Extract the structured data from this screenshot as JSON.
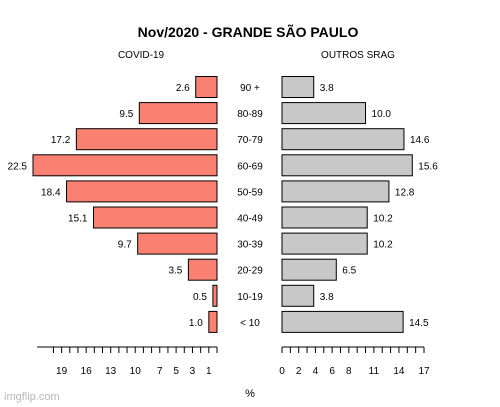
{
  "chart_data": {
    "type": "bar",
    "title": "Nov/2020 - GRANDE SÃO PAULO",
    "xlabel": "%",
    "categories": [
      "90 +",
      "80-89",
      "70-79",
      "60-69",
      "50-59",
      "40-49",
      "30-39",
      "20-29",
      "10-19",
      "< 10"
    ],
    "series": [
      {
        "name": "COVID-19",
        "values": [
          2.6,
          9.5,
          17.2,
          22.5,
          18.4,
          15.1,
          9.7,
          3.5,
          0.5,
          1.0
        ],
        "color": "#fa8072",
        "direction": "left",
        "ticks": [
          19,
          16,
          13,
          10,
          7,
          5,
          3,
          1
        ]
      },
      {
        "name": "OUTROS SRAG",
        "values": [
          3.8,
          10.0,
          14.6,
          15.6,
          12.8,
          10.2,
          10.2,
          6.5,
          3.8,
          14.5
        ],
        "color": "#c8c8c8",
        "direction": "right",
        "ticks": [
          0,
          2,
          4,
          6,
          8,
          11,
          14,
          17
        ]
      }
    ],
    "xlim_left": [
      0,
      22.5
    ],
    "xlim_right": [
      0,
      17
    ]
  },
  "watermark": "imgflip.com"
}
